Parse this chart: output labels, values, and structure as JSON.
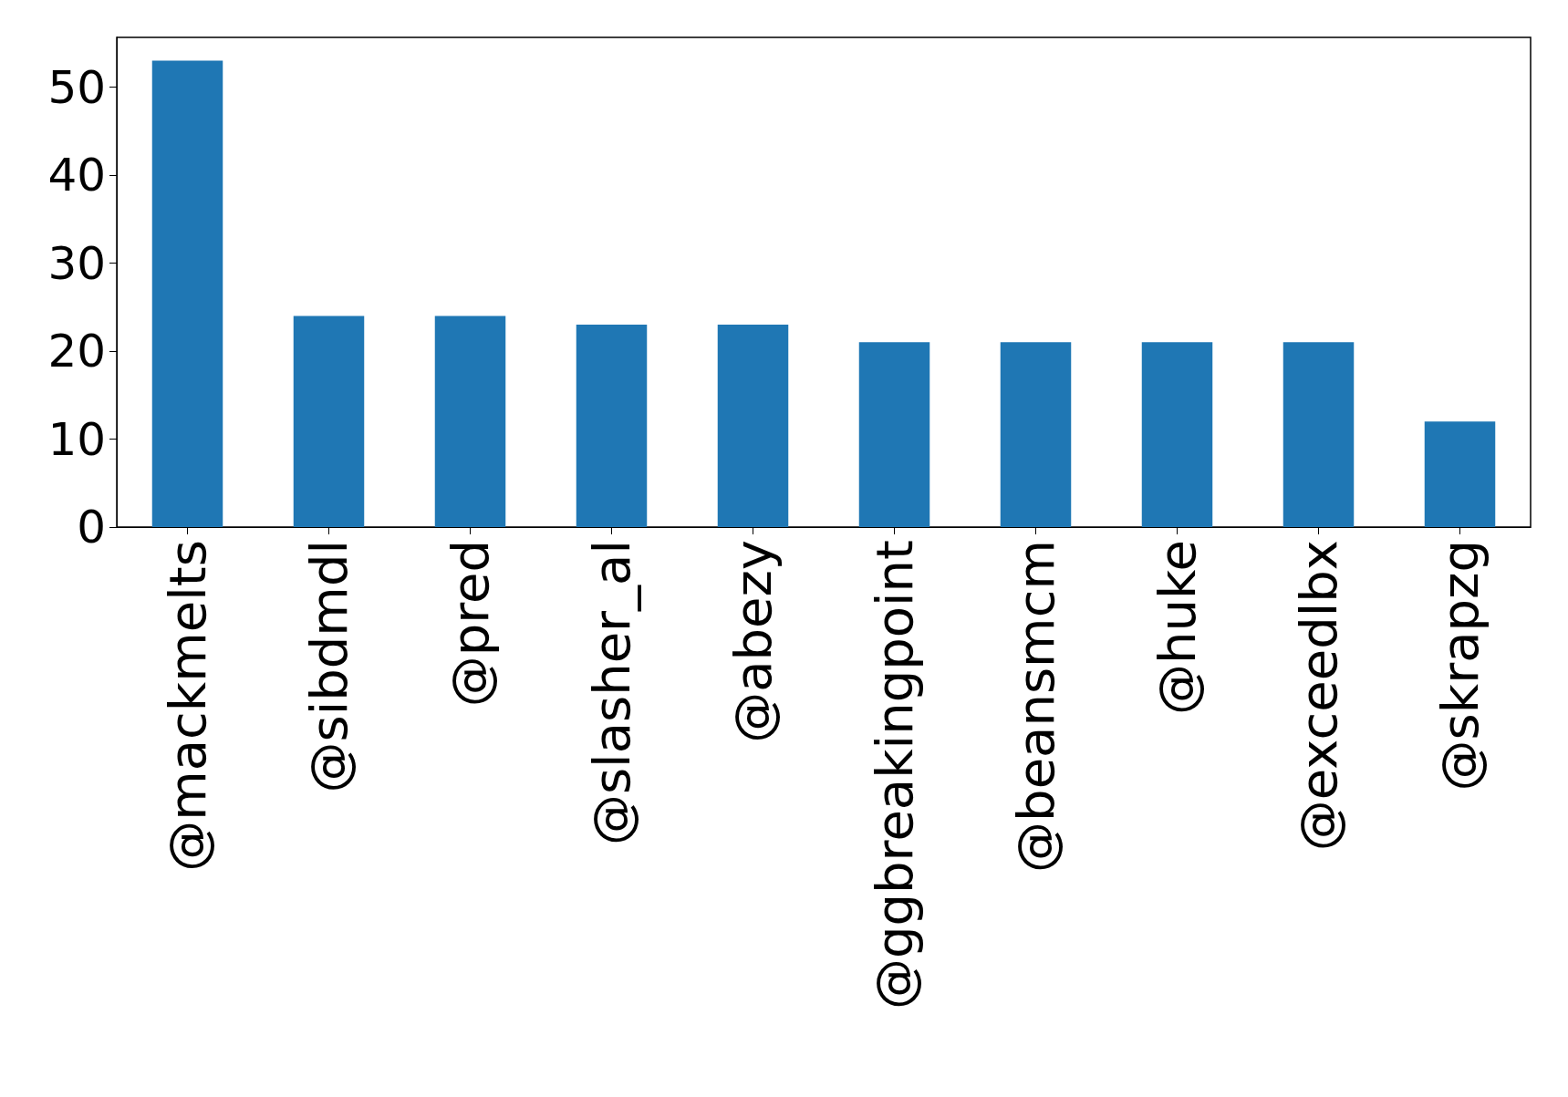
{
  "chart_data": {
    "type": "bar",
    "categories": [
      "@mackmelts",
      "@sibdmdl",
      "@pred",
      "@slasher_al",
      "@abezy",
      "@ggbreakingpoint",
      "@beansmcm",
      "@huke",
      "@exceedlbx",
      "@skrapzg"
    ],
    "values": [
      53,
      24,
      24,
      23,
      23,
      21,
      21,
      21,
      21,
      12
    ],
    "color": "#1f77b4",
    "ylim": [
      0,
      55.65
    ],
    "yticks": [
      0,
      10,
      20,
      30,
      40,
      50
    ],
    "grid": false
  }
}
